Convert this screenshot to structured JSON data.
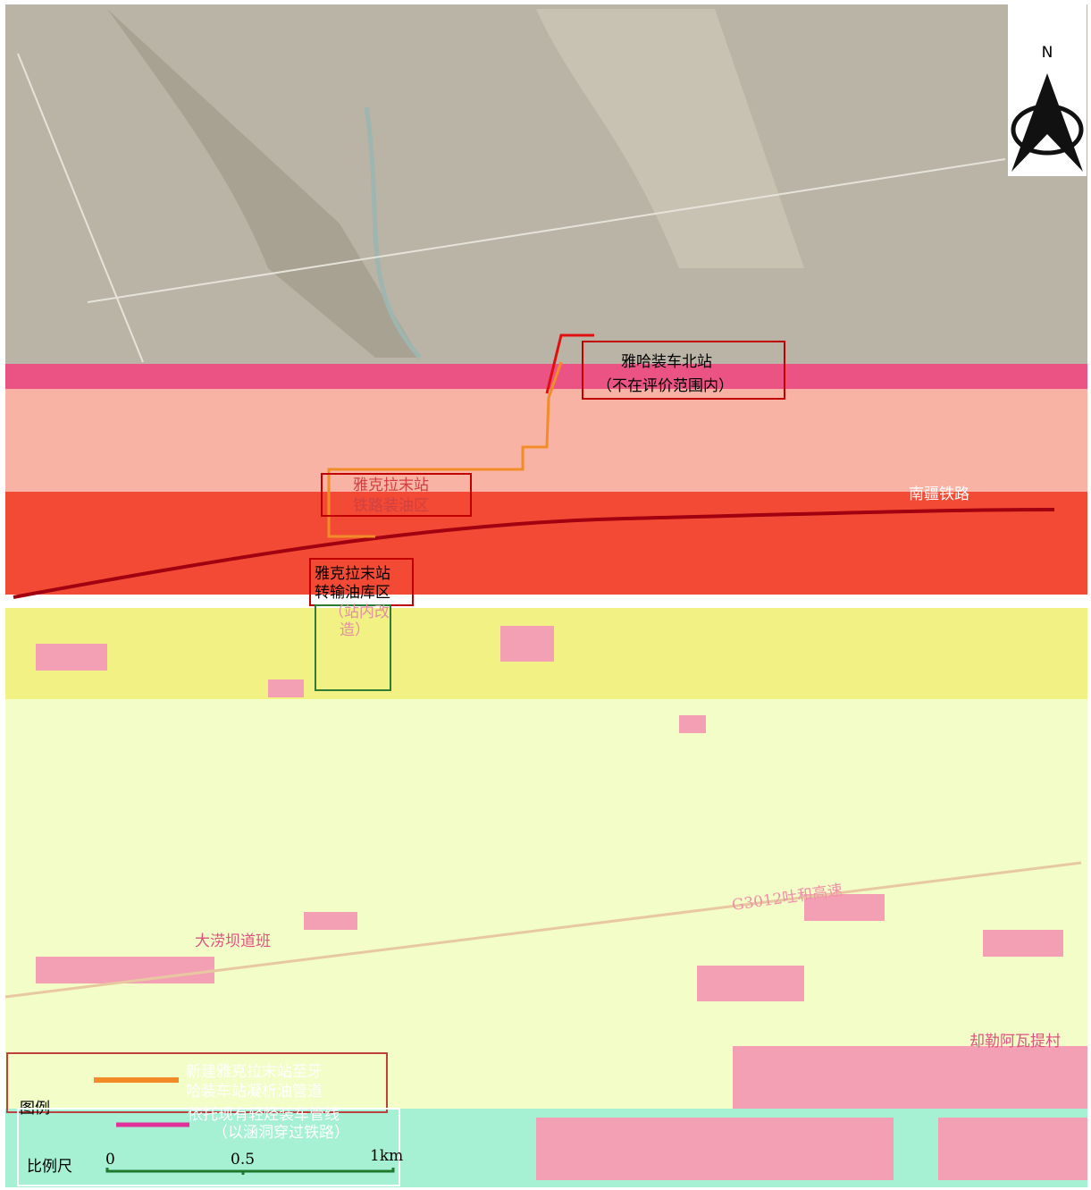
{
  "compass": {
    "label": "N"
  },
  "labels": {
    "north_station": [
      "雅哈装车北站",
      "（不在评价范围内）"
    ],
    "loading_area": [
      "雅克拉末站",
      "铁路装油区"
    ],
    "depot_area": [
      "雅克拉末站",
      "转输油库区",
      "（站内改",
      "造）"
    ],
    "railway": "南疆铁路",
    "highway": "G3012吐和高速",
    "road_team": "大涝坝道班",
    "village": "却勒阿瓦提村"
  },
  "legend": {
    "title": "图例",
    "items": [
      [
        "新建雅克拉末站至牙",
        "哈装车站凝析油管道"
      ],
      [
        "依托现有轻烃装车管线",
        "（以涵洞穿过铁路）"
      ]
    ]
  },
  "scale": {
    "title": "比例尺",
    "labels": [
      "0",
      "0.5",
      "1km"
    ]
  }
}
